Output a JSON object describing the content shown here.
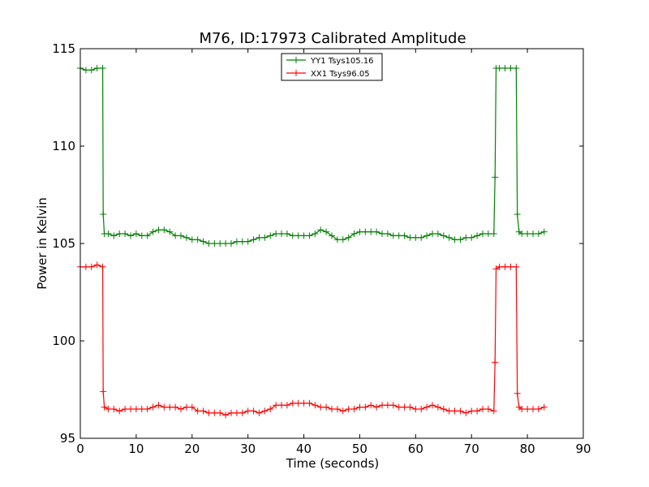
{
  "chart_data": {
    "type": "line",
    "title": "M76, ID:17973 Calibrated Amplitude",
    "xlabel": "Time (seconds)",
    "ylabel": "Power in Kelvin",
    "xlim": [
      0,
      90
    ],
    "ylim": [
      95,
      115
    ],
    "xticks": [
      0,
      10,
      20,
      30,
      40,
      50,
      60,
      70,
      80,
      90
    ],
    "yticks": [
      95,
      100,
      105,
      110,
      115
    ],
    "grid": false,
    "legend_position": "top-center",
    "marker": "+",
    "series": [
      {
        "name": "YY1 Tsys105.16",
        "color": "#008000",
        "x": [
          0,
          1,
          2,
          3,
          4,
          4.1,
          4.3,
          5,
          6,
          7,
          8,
          9,
          10,
          11,
          12,
          13,
          14,
          15,
          16,
          17,
          18,
          19,
          20,
          21,
          22,
          23,
          24,
          25,
          26,
          27,
          28,
          29,
          30,
          31,
          32,
          33,
          34,
          35,
          36,
          37,
          38,
          39,
          40,
          41,
          42,
          43,
          44,
          45,
          46,
          47,
          48,
          49,
          50,
          51,
          52,
          53,
          54,
          55,
          56,
          57,
          58,
          59,
          60,
          61,
          62,
          63,
          64,
          65,
          66,
          67,
          68,
          69,
          70,
          71,
          72,
          73,
          74,
          74.2,
          74.4,
          75,
          76,
          77,
          78,
          78.2,
          78.5,
          79,
          80,
          81,
          82,
          83
        ],
        "y": [
          114.0,
          113.9,
          113.9,
          114.0,
          114.0,
          106.5,
          105.5,
          105.5,
          105.4,
          105.5,
          105.5,
          105.4,
          105.5,
          105.4,
          105.4,
          105.6,
          105.7,
          105.7,
          105.6,
          105.4,
          105.4,
          105.3,
          105.2,
          105.2,
          105.1,
          105.0,
          105.0,
          105.0,
          105.0,
          105.0,
          105.1,
          105.1,
          105.1,
          105.2,
          105.3,
          105.3,
          105.4,
          105.5,
          105.5,
          105.5,
          105.4,
          105.4,
          105.4,
          105.4,
          105.5,
          105.7,
          105.6,
          105.4,
          105.2,
          105.2,
          105.3,
          105.5,
          105.6,
          105.6,
          105.6,
          105.6,
          105.5,
          105.5,
          105.4,
          105.4,
          105.4,
          105.3,
          105.3,
          105.3,
          105.4,
          105.5,
          105.5,
          105.4,
          105.3,
          105.2,
          105.2,
          105.3,
          105.3,
          105.4,
          105.5,
          105.5,
          105.5,
          108.4,
          114.0,
          114.0,
          114.0,
          114.0,
          114.0,
          106.5,
          105.6,
          105.5,
          105.5,
          105.5,
          105.5,
          105.6
        ]
      },
      {
        "name": "XX1 Tsys96.05",
        "color": "#ff0000",
        "x": [
          0,
          1,
          2,
          3,
          4,
          4.1,
          4.3,
          5,
          6,
          7,
          8,
          9,
          10,
          11,
          12,
          13,
          14,
          15,
          16,
          17,
          18,
          19,
          20,
          21,
          22,
          23,
          24,
          25,
          26,
          27,
          28,
          29,
          30,
          31,
          32,
          33,
          34,
          35,
          36,
          37,
          38,
          39,
          40,
          41,
          42,
          43,
          44,
          45,
          46,
          47,
          48,
          49,
          50,
          51,
          52,
          53,
          54,
          55,
          56,
          57,
          58,
          59,
          60,
          61,
          62,
          63,
          64,
          65,
          66,
          67,
          68,
          69,
          70,
          71,
          72,
          73,
          74,
          74.2,
          74.4,
          75,
          76,
          77,
          78,
          78.2,
          78.5,
          79,
          80,
          81,
          82,
          83
        ],
        "y": [
          103.8,
          103.8,
          103.8,
          103.9,
          103.8,
          97.4,
          96.6,
          96.5,
          96.5,
          96.4,
          96.5,
          96.5,
          96.5,
          96.5,
          96.5,
          96.6,
          96.7,
          96.6,
          96.6,
          96.6,
          96.5,
          96.6,
          96.6,
          96.4,
          96.4,
          96.3,
          96.3,
          96.3,
          96.2,
          96.3,
          96.3,
          96.3,
          96.4,
          96.4,
          96.3,
          96.4,
          96.5,
          96.7,
          96.7,
          96.7,
          96.8,
          96.8,
          96.8,
          96.8,
          96.7,
          96.6,
          96.6,
          96.5,
          96.5,
          96.4,
          96.5,
          96.5,
          96.6,
          96.6,
          96.7,
          96.6,
          96.7,
          96.7,
          96.7,
          96.6,
          96.6,
          96.6,
          96.5,
          96.5,
          96.6,
          96.7,
          96.6,
          96.5,
          96.4,
          96.4,
          96.4,
          96.3,
          96.4,
          96.4,
          96.5,
          96.5,
          96.4,
          98.9,
          103.7,
          103.8,
          103.8,
          103.8,
          103.8,
          97.3,
          96.6,
          96.5,
          96.5,
          96.5,
          96.5,
          96.6
        ]
      }
    ]
  }
}
